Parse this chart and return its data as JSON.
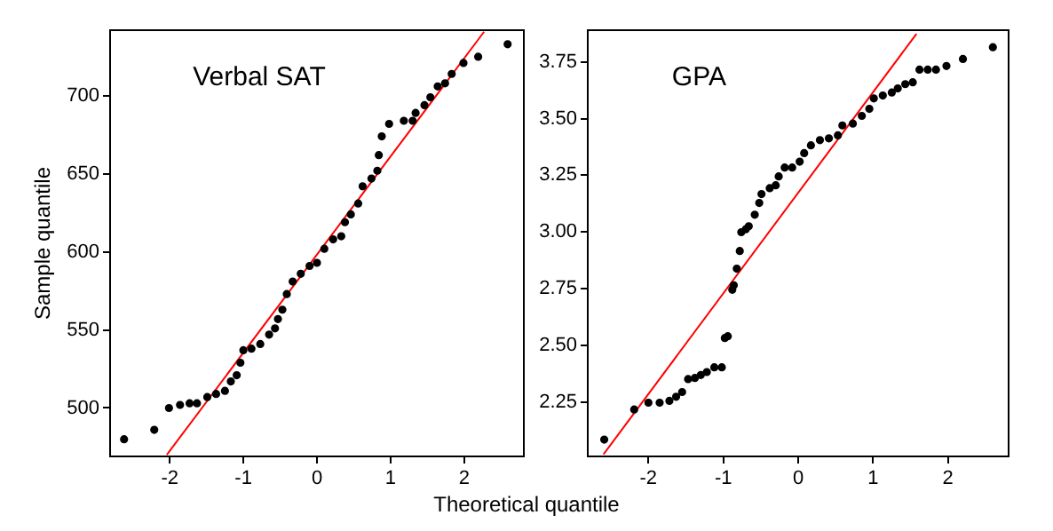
{
  "chart_data": [
    {
      "type": "scatter",
      "title": "Verbal SAT",
      "xlabel": "Theoretical quantile",
      "ylabel": "Sample quantile",
      "xlim": [
        -2.81,
        2.81
      ],
      "xticks": [
        -2,
        -1,
        0,
        1,
        2
      ],
      "ylim": [
        469,
        742
      ],
      "yticks": [
        500,
        550,
        600,
        650,
        700
      ],
      "grid": false,
      "legend": false,
      "series": [
        {
          "marker": "circle",
          "color": "#000000",
          "x": [
            -2.62,
            -2.21,
            -2.01,
            -1.86,
            -1.73,
            -1.63,
            -1.49,
            -1.37,
            -1.25,
            -1.17,
            -1.09,
            -1.04,
            -1.0,
            -0.89,
            -0.77,
            -0.65,
            -0.57,
            -0.53,
            -0.47,
            -0.41,
            -0.33,
            -0.22,
            -0.1,
            0.0,
            0.1,
            0.22,
            0.33,
            0.38,
            0.46,
            0.56,
            0.62,
            0.74,
            0.82,
            0.84,
            0.88,
            0.98,
            1.18,
            1.3,
            1.34,
            1.46,
            1.54,
            1.64,
            1.74,
            1.83,
            1.99,
            2.19,
            2.59
          ],
          "values": [
            480,
            486,
            500,
            502,
            503,
            503,
            507,
            509,
            511,
            517,
            521,
            529,
            537,
            538,
            541,
            547,
            551,
            557,
            563,
            573,
            581,
            586,
            591,
            593,
            602,
            608,
            610,
            619,
            624,
            631,
            642,
            647,
            652,
            662,
            674,
            682,
            684,
            684,
            689,
            694,
            699,
            706,
            708,
            714,
            721,
            725,
            733
          ]
        },
        {
          "type": "line",
          "marker": "none",
          "color": "#ff0000",
          "x": [
            -2.04,
            2.27
          ],
          "values": [
            470,
            741
          ]
        }
      ]
    },
    {
      "type": "scatter",
      "title": "GPA",
      "xlim": [
        -2.81,
        2.81
      ],
      "xticks": [
        -2,
        -1,
        0,
        1,
        2
      ],
      "ylim": [
        2.01,
        3.89
      ],
      "yticks": [
        2.25,
        {
          "value": 2.5,
          "label": "2.50"
        },
        2.75,
        {
          "value": 3,
          "label": "3.00"
        },
        3.25,
        {
          "value": 3.5,
          "label": "3.50"
        },
        3.75
      ],
      "grid": false,
      "legend": false,
      "series": [
        {
          "marker": "circle",
          "color": "#000000",
          "x": [
            -2.59,
            -2.19,
            -2.0,
            -1.85,
            -1.72,
            -1.63,
            -1.55,
            -1.47,
            -1.38,
            -1.3,
            -1.22,
            -1.12,
            -1.02,
            -0.98,
            -0.94,
            -0.88,
            -0.86,
            -0.82,
            -0.78,
            -0.76,
            -0.7,
            -0.66,
            -0.58,
            -0.52,
            -0.49,
            -0.38,
            -0.3,
            -0.26,
            -0.18,
            -0.08,
            0.02,
            0.08,
            0.17,
            0.29,
            0.41,
            0.53,
            0.59,
            0.73,
            0.85,
            0.95,
            1.01,
            1.13,
            1.25,
            1.33,
            1.43,
            1.53,
            1.62,
            1.73,
            1.84,
            1.98,
            2.2,
            2.6
          ],
          "values": [
            2.084,
            2.217,
            2.247,
            2.247,
            2.255,
            2.273,
            2.294,
            2.351,
            2.356,
            2.369,
            2.382,
            2.403,
            2.403,
            2.532,
            2.54,
            2.745,
            2.765,
            2.838,
            2.916,
            2.999,
            3.012,
            3.025,
            3.076,
            3.128,
            3.167,
            3.193,
            3.206,
            3.245,
            3.284,
            3.284,
            3.31,
            3.348,
            3.382,
            3.405,
            3.413,
            3.426,
            3.47,
            3.478,
            3.512,
            3.543,
            3.589,
            3.602,
            3.615,
            3.633,
            3.652,
            3.66,
            3.716,
            3.716,
            3.716,
            3.732,
            3.763,
            3.815
          ]
        },
        {
          "type": "line",
          "marker": "none",
          "color": "#ff0000",
          "x": [
            -2.6,
            1.58
          ],
          "values": [
            2.019,
            3.874
          ]
        }
      ]
    }
  ]
}
